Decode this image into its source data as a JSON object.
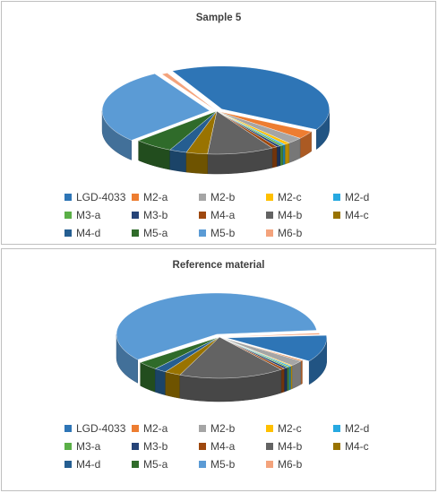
{
  "chart_data": [
    {
      "type": "pie",
      "title": "Sample 5",
      "categories": [
        "LGD-4033",
        "M2-a",
        "M2-b",
        "M2-c",
        "M2-d",
        "M3-a",
        "M3-b",
        "M4-a",
        "M4-b",
        "M4-c",
        "M4-d",
        "M5-a",
        "M5-b",
        "M6-b"
      ],
      "values": [
        40.5,
        3.0,
        2.4,
        0.8,
        0.4,
        0.5,
        0.6,
        0.8,
        10.0,
        3.2,
        2.6,
        5.8,
        28.5,
        0.9
      ],
      "legend": "bottom"
    },
    {
      "type": "pie",
      "title": "Reference material",
      "categories": [
        "LGD-4033",
        "M2-a",
        "M2-b",
        "M2-c",
        "M2-d",
        "M3-a",
        "M3-b",
        "M4-a",
        "M4-b",
        "M4-c",
        "M4-d",
        "M5-a",
        "M5-b",
        "M6-b"
      ],
      "values": [
        10.5,
        0.4,
        2.2,
        0.3,
        0.4,
        0.4,
        0.6,
        0.6,
        17.0,
        2.6,
        2.0,
        3.4,
        59.0,
        0.6
      ],
      "legend": "bottom"
    }
  ],
  "colors": [
    "#2E75B6",
    "#ED7D31",
    "#A5A5A5",
    "#FFC000",
    "#27A9E1",
    "#5AAF47",
    "#264478",
    "#9E480E",
    "#636363",
    "#997300",
    "#255E91",
    "#2F6B2A",
    "#5B9BD5",
    "#F4A37C"
  ]
}
